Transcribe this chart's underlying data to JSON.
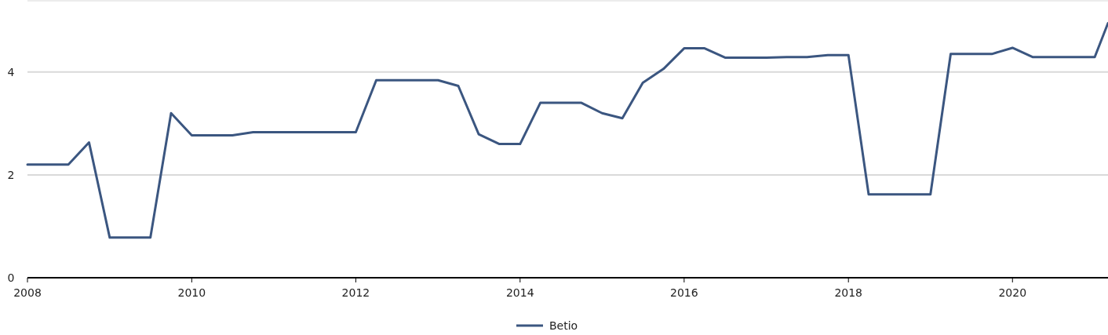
{
  "chart_data": {
    "type": "line",
    "x": [
      "2008-01",
      "2008-04",
      "2008-07",
      "2008-10",
      "2009-01",
      "2009-04",
      "2009-07",
      "2009-10",
      "2010-01",
      "2010-04",
      "2010-07",
      "2010-10",
      "2011-01",
      "2011-04",
      "2011-07",
      "2011-10",
      "2012-01",
      "2012-04",
      "2012-07",
      "2012-10",
      "2013-01",
      "2013-04",
      "2013-07",
      "2013-10",
      "2014-01",
      "2014-04",
      "2014-07",
      "2014-10",
      "2015-01",
      "2015-04",
      "2015-07",
      "2015-10",
      "2016-01",
      "2016-04",
      "2016-07",
      "2016-10",
      "2017-01",
      "2017-04",
      "2017-07",
      "2017-10",
      "2018-01",
      "2018-04",
      "2018-07",
      "2018-10",
      "2019-01",
      "2019-04",
      "2019-07",
      "2019-10",
      "2020-01",
      "2020-04",
      "2020-07",
      "2020-10",
      "2021-01",
      "2021-03"
    ],
    "series": [
      {
        "name": "Betio",
        "color": "#3b5680",
        "values": [
          2.2,
          2.2,
          2.2,
          2.63,
          0.78,
          0.78,
          0.78,
          3.2,
          2.77,
          2.77,
          2.77,
          2.83,
          2.83,
          2.83,
          2.83,
          2.83,
          2.83,
          3.84,
          3.84,
          3.84,
          3.84,
          3.73,
          2.79,
          2.6,
          2.6,
          3.4,
          3.4,
          3.4,
          3.2,
          3.1,
          3.79,
          4.06,
          4.46,
          4.46,
          4.28,
          4.28,
          4.28,
          4.29,
          4.29,
          4.33,
          4.33,
          1.62,
          1.62,
          1.62,
          1.62,
          4.35,
          4.35,
          4.35,
          4.47,
          4.29,
          4.29,
          4.29,
          4.29,
          4.95
        ]
      }
    ],
    "xlim": [
      "2008-01",
      "2021-03"
    ],
    "xticks": [
      "2008",
      "2010",
      "2012",
      "2014",
      "2016",
      "2018",
      "2020"
    ],
    "ylim": [
      0,
      5.4
    ],
    "yticks": [
      0,
      2,
      4
    ],
    "grid": "y",
    "legend": "bottom",
    "marker": "none",
    "line_style": "solid"
  }
}
